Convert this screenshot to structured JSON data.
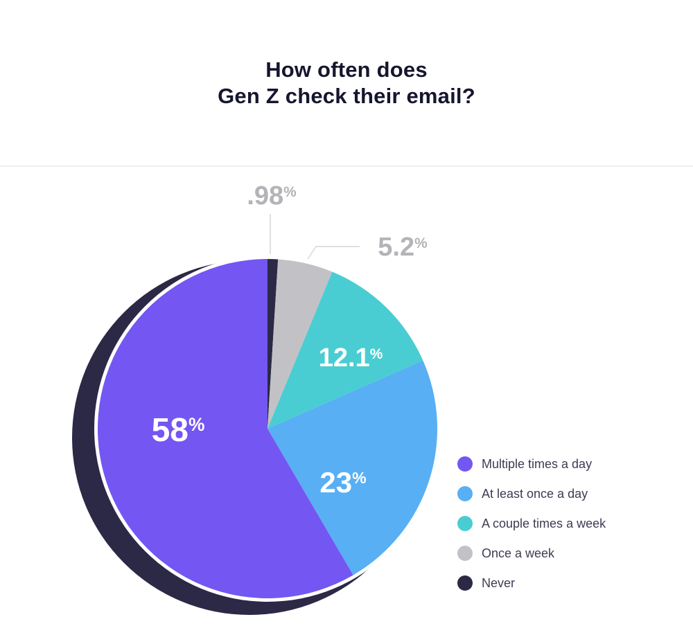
{
  "title": {
    "line1": "How often does",
    "line2": "Gen Z check their email?"
  },
  "percent_sign": "%",
  "chart_data": {
    "type": "pie",
    "title": "How often does Gen Z check their email?",
    "legend_position": "right",
    "start_angle_deg": 0,
    "direction": "clockwise",
    "slices": [
      {
        "label": "Never",
        "value": 0.98,
        "display": ".98",
        "color": "#2B2946",
        "label_placement": "outside-callout"
      },
      {
        "label": "Once a week",
        "value": 5.2,
        "display": "5.2",
        "color": "#C2C2C6",
        "label_placement": "outside-callout"
      },
      {
        "label": "A couple times a week",
        "value": 12.1,
        "display": "12.1",
        "color": "#4ACDD2",
        "label_placement": "inside"
      },
      {
        "label": "At least once a day",
        "value": 23,
        "display": "23",
        "color": "#58AFF4",
        "label_placement": "inside"
      },
      {
        "label": "Multiple times a day",
        "value": 58,
        "display": "58",
        "color": "#7456F2",
        "label_placement": "inside"
      }
    ],
    "shadow_color": "#2B2946",
    "ring_color": "#FFFFFF",
    "leader_line_color": "#E0E0E3"
  }
}
